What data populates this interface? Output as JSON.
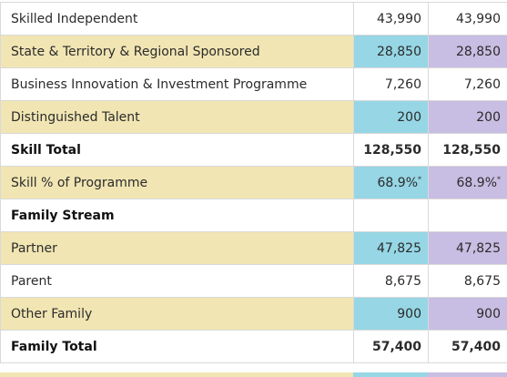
{
  "rows": [
    {
      "label": "Skilled Independent",
      "a": "43,990",
      "b": "43,990",
      "style": "white",
      "bold": false
    },
    {
      "label": "State & Territory & Regional Sponsored",
      "a": "28,850",
      "b": "28,850",
      "style": "tan",
      "bold": false
    },
    {
      "label": "Business Innovation & Investment Programme",
      "a": "7,260",
      "b": "7,260",
      "style": "white",
      "bold": false
    },
    {
      "label": "Distinguished Talent",
      "a": "200",
      "b": "200",
      "style": "tan",
      "bold": false
    },
    {
      "label": "Skill Total",
      "a": "128,550",
      "b": "128,550",
      "style": "white",
      "bold": true
    },
    {
      "label": "Skill % of Programme",
      "a": "68.9%",
      "b": "68.9%",
      "a_sup": "*",
      "b_sup": "*",
      "style": "tan",
      "bold": false
    },
    {
      "label": "Family Stream",
      "a": "",
      "b": "",
      "style": "white",
      "bold": true,
      "header": true
    },
    {
      "label": "Partner",
      "a": "47,825",
      "b": "47,825",
      "style": "tan",
      "bold": false
    },
    {
      "label": "Parent",
      "a": "8,675",
      "b": "8,675",
      "style": "white",
      "bold": false
    },
    {
      "label": "Other Family",
      "a": "900",
      "b": "900",
      "style": "tan",
      "bold": false
    },
    {
      "label": "Family Total",
      "a": "57,400",
      "b": "57,400",
      "style": "white",
      "bold": true
    }
  ],
  "colors": {
    "tan": "#f1e5b3",
    "blue": "#96d6e5",
    "purple": "#c8bde2",
    "white": "#ffffff",
    "border": "#d9d9d9"
  }
}
